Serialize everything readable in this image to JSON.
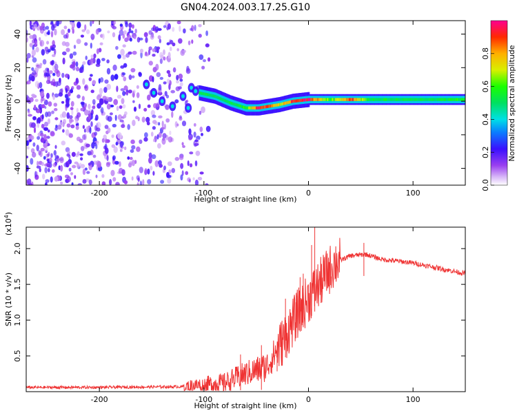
{
  "chart_data": [
    {
      "type": "heatmap",
      "title": "GN04.2024.003.17.25.G10",
      "xlabel": "Height of straight line (km)",
      "ylabel": "Frequency (Hz)",
      "xlim": [
        -270,
        150
      ],
      "ylim": [
        -50,
        48
      ],
      "xticks": [
        -200,
        -100,
        0,
        100
      ],
      "xtick_labels": [
        "-200",
        "-100",
        "0",
        "100"
      ],
      "yticks": [
        -40,
        -20,
        0,
        20,
        40
      ],
      "ytick_labels": [
        "-40",
        "-20",
        "0",
        "20",
        "40"
      ],
      "colorbar": {
        "label": "Normalized spectral amplitude",
        "range": [
          0,
          1
        ],
        "ticks": [
          0.0,
          0.2,
          0.4,
          0.6,
          0.8
        ],
        "tick_labels": [
          "0.0",
          "0.2",
          "0.4",
          "0.6",
          "0.8"
        ]
      },
      "ridge": {
        "x": [
          -105,
          -90,
          -75,
          -60,
          -48,
          -38,
          -28,
          -15,
          0,
          20,
          40,
          60,
          100,
          150
        ],
        "y": [
          5,
          3,
          -1,
          -4,
          -4,
          -3,
          -2,
          0,
          1,
          1,
          1,
          1,
          1,
          1
        ],
        "amplitude": [
          0.5,
          0.45,
          0.5,
          0.55,
          0.95,
          0.85,
          0.7,
          0.9,
          0.95,
          0.6,
          0.9,
          0.5,
          0.5,
          0.55
        ]
      },
      "noise_region": {
        "x": [
          -270,
          -95
        ],
        "y": [
          -50,
          48
        ]
      }
    },
    {
      "type": "line",
      "xlabel": "Height of straight line (km)",
      "ylabel": "SNR (10 * v/v)",
      "y_multiplier": "(x10^4)",
      "xlim": [
        -270,
        150
      ],
      "ylim": [
        0,
        2.3
      ],
      "xticks": [
        -200,
        -100,
        0,
        100
      ],
      "xtick_labels": [
        "-200",
        "-100",
        "0",
        "100"
      ],
      "yticks": [
        0.5,
        1.0,
        1.5,
        2.0
      ],
      "ytick_labels": [
        "0.5",
        "1.0",
        "1.5",
        "2.0"
      ],
      "color": "#ef3333",
      "trend": {
        "x": [
          -270,
          -200,
          -120,
          -100,
          -80,
          -60,
          -40,
          -25,
          -10,
          0,
          10,
          25,
          40,
          55,
          70,
          100,
          150
        ],
        "y": [
          0.06,
          0.06,
          0.07,
          0.1,
          0.12,
          0.25,
          0.35,
          0.7,
          1.1,
          1.3,
          1.5,
          1.8,
          1.9,
          1.92,
          1.85,
          1.8,
          1.65
        ]
      },
      "spikes": {
        "x": [
          -65,
          -45,
          -30,
          -22,
          -12,
          -8,
          -5,
          3,
          6,
          12,
          53
        ],
        "y": [
          0.52,
          0.65,
          0.6,
          1.3,
          1.25,
          1.6,
          1.65,
          2.05,
          2.3,
          1.5,
          2.08
        ]
      }
    }
  ]
}
